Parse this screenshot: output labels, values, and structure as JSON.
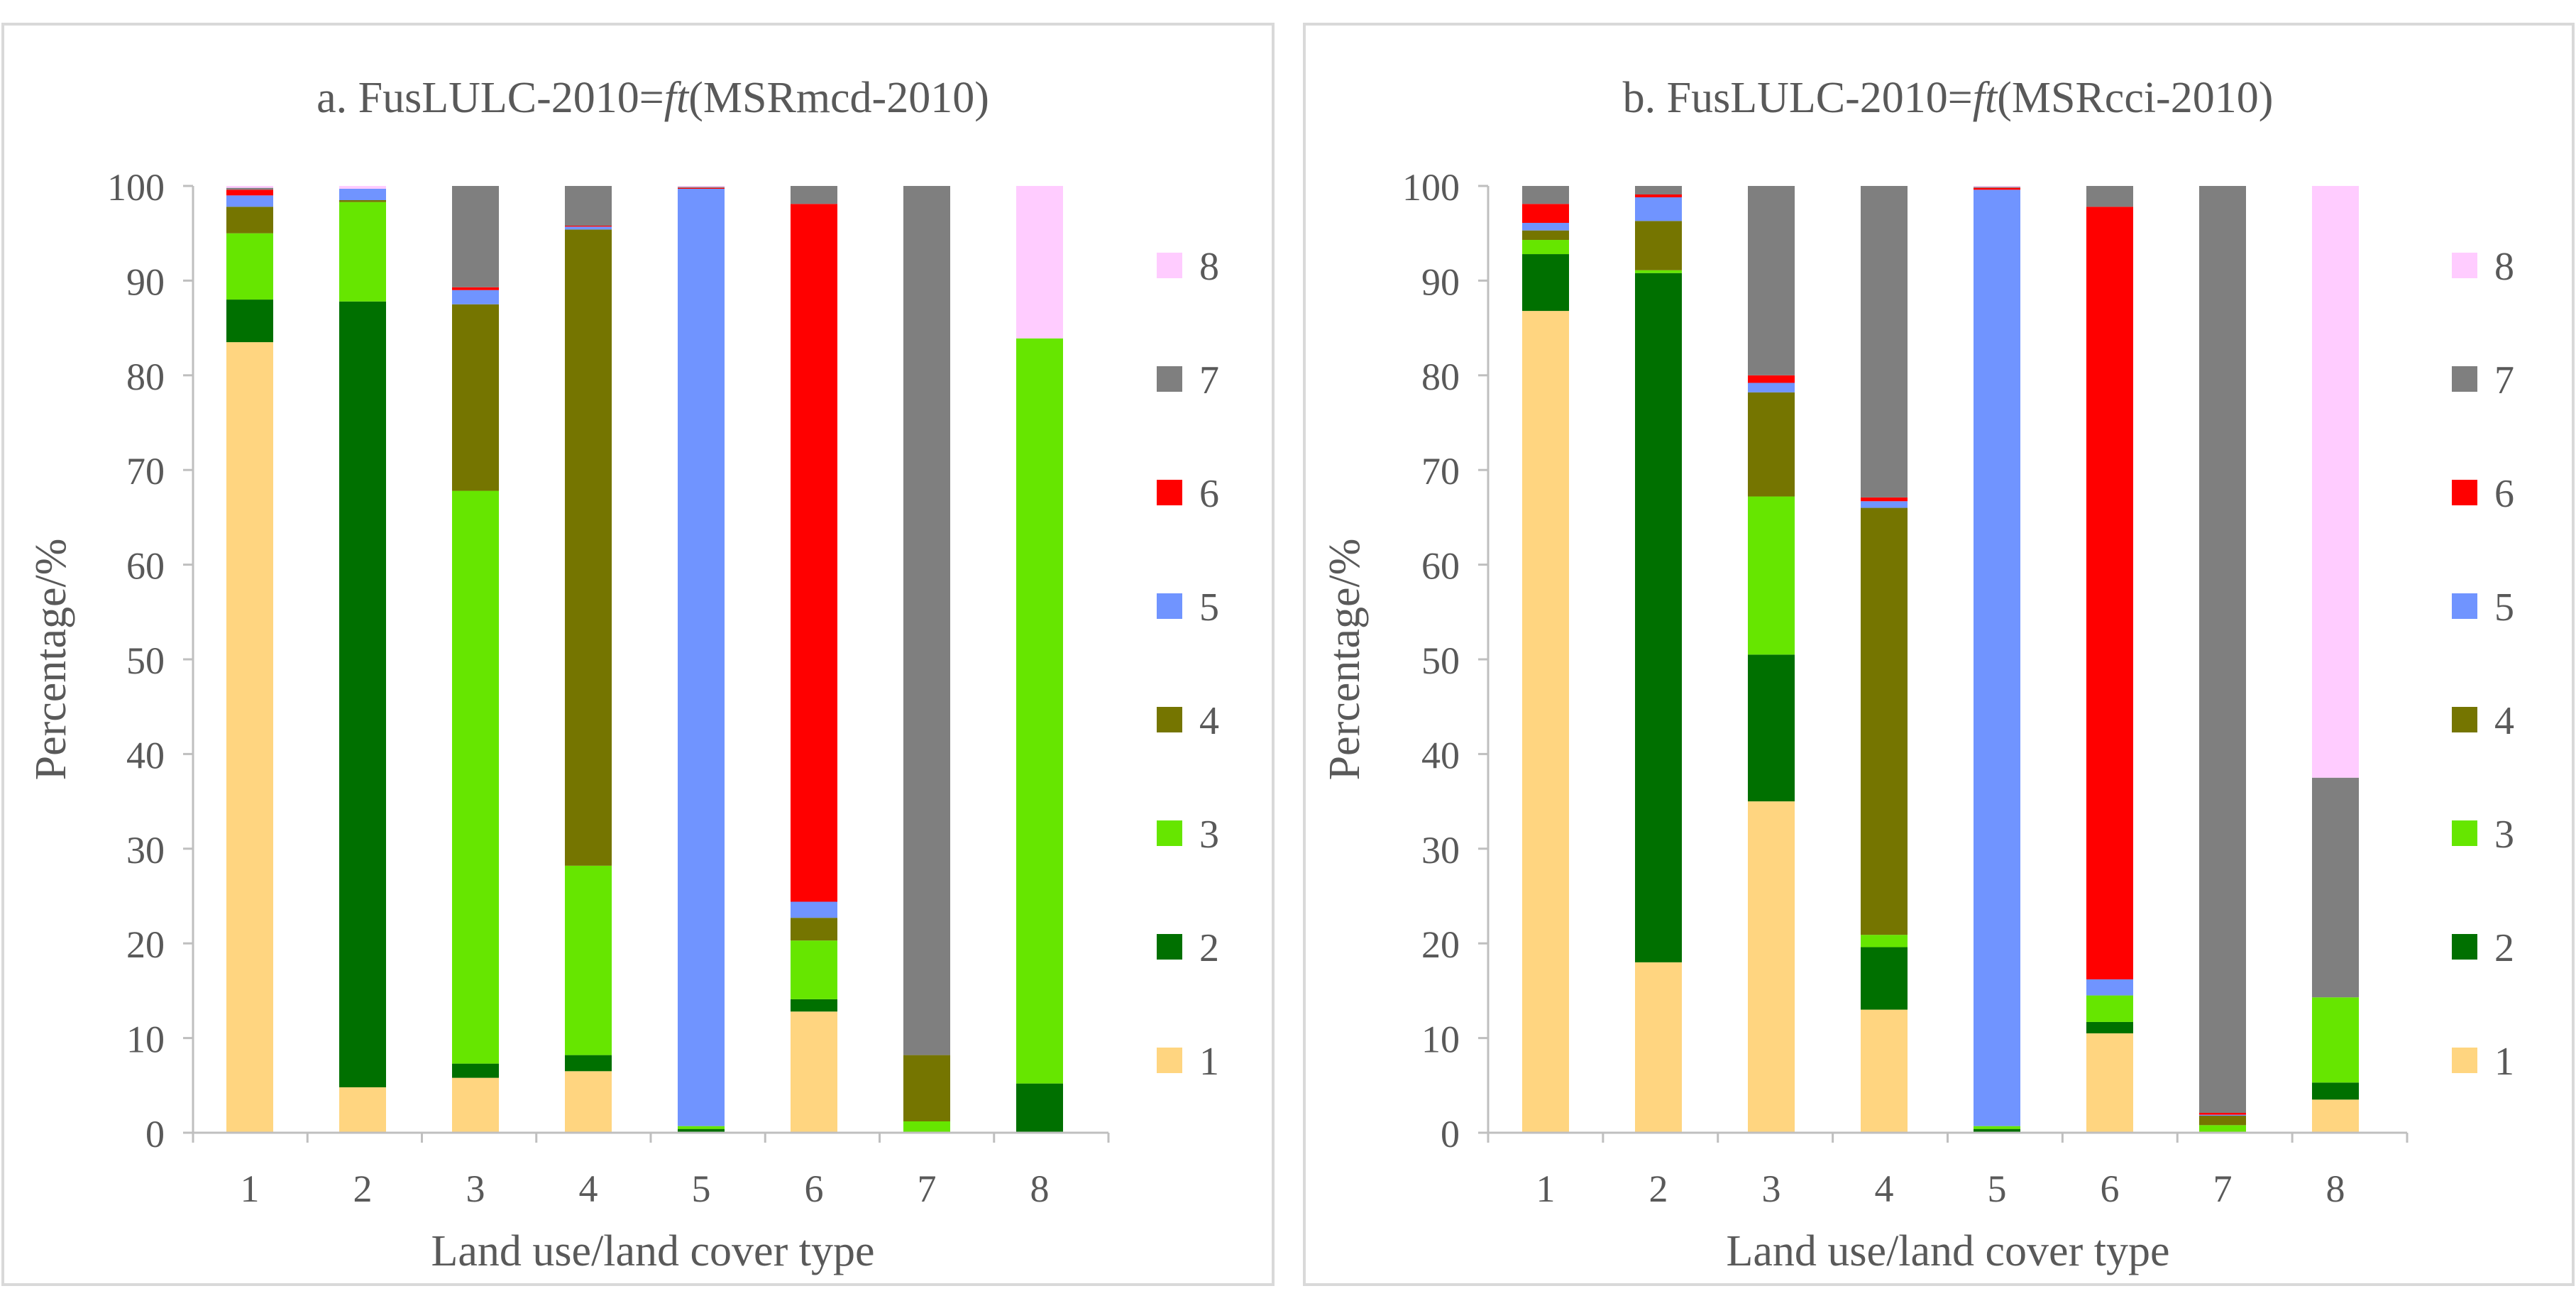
{
  "chart_data": [
    {
      "type": "bar",
      "stacked": true,
      "title_prefix": "a. FusLULC-2010=",
      "title_italic": "ft",
      "title_suffix": "(MSRmcd-2010)",
      "xlabel": "Land use/land cover type",
      "ylabel": "Percentage/%",
      "ylim": [
        0,
        100
      ],
      "yticks": [
        "0",
        "10",
        "20",
        "30",
        "40",
        "50",
        "60",
        "70",
        "80",
        "90",
        "100"
      ],
      "categories": [
        "1",
        "2",
        "3",
        "4",
        "5",
        "6",
        "7",
        "8"
      ],
      "series": [
        {
          "name": "1",
          "color": "#FFD580",
          "values": [
            83.5,
            4.8,
            5.8,
            6.5,
            0.0,
            12.8,
            0.0,
            0.0
          ]
        },
        {
          "name": "2",
          "color": "#007000",
          "values": [
            4.5,
            83.0,
            1.5,
            1.7,
            0.4,
            1.3,
            0.0,
            5.2
          ]
        },
        {
          "name": "3",
          "color": "#66E600",
          "values": [
            7.0,
            10.5,
            60.5,
            20.0,
            0.3,
            6.2,
            1.2,
            78.7
          ]
        },
        {
          "name": "4",
          "color": "#757500",
          "values": [
            2.8,
            0.2,
            19.7,
            67.2,
            0.0,
            2.4,
            7.0,
            0.0
          ]
        },
        {
          "name": "5",
          "color": "#7094FF",
          "values": [
            1.2,
            1.2,
            1.5,
            0.3,
            99.0,
            1.7,
            0.0,
            0.0
          ]
        },
        {
          "name": "6",
          "color": "#FF0000",
          "values": [
            0.6,
            0.0,
            0.3,
            0.1,
            0.1,
            73.7,
            0.0,
            0.0
          ]
        },
        {
          "name": "7",
          "color": "#7F7F7F",
          "values": [
            0.2,
            0.0,
            10.7,
            4.2,
            0.1,
            1.9,
            91.8,
            0.0
          ]
        },
        {
          "name": "8",
          "color": "#FFCCFF",
          "values": [
            0.2,
            0.3,
            0.0,
            0.0,
            0.1,
            0.0,
            0.0,
            16.1
          ]
        }
      ]
    },
    {
      "type": "bar",
      "stacked": true,
      "title_prefix": "b. FusLULC-2010=",
      "title_italic": "ft",
      "title_suffix": "(MSRcci-2010)",
      "xlabel": "Land use/land cover type",
      "ylabel": "Percentage/%",
      "ylim": [
        0,
        100
      ],
      "yticks": [
        "0",
        "10",
        "20",
        "30",
        "40",
        "50",
        "60",
        "70",
        "80",
        "90",
        "100"
      ],
      "categories": [
        "1",
        "2",
        "3",
        "4",
        "5",
        "6",
        "7",
        "8"
      ],
      "series": [
        {
          "name": "1",
          "color": "#FFD580",
          "values": [
            86.8,
            18.0,
            35.0,
            13.0,
            0.0,
            10.5,
            0.0,
            3.5
          ]
        },
        {
          "name": "2",
          "color": "#007000",
          "values": [
            6.0,
            72.8,
            15.5,
            6.6,
            0.4,
            1.2,
            0.0,
            1.8
          ]
        },
        {
          "name": "3",
          "color": "#66E600",
          "values": [
            1.5,
            0.3,
            16.7,
            1.3,
            0.3,
            2.8,
            0.8,
            9.0
          ]
        },
        {
          "name": "4",
          "color": "#757500",
          "values": [
            1.0,
            5.2,
            11.0,
            45.1,
            0.0,
            0.0,
            1.0,
            0.0
          ]
        },
        {
          "name": "5",
          "color": "#7094FF",
          "values": [
            0.8,
            2.5,
            1.0,
            0.7,
            98.9,
            1.7,
            0.1,
            0.0
          ]
        },
        {
          "name": "6",
          "color": "#FF0000",
          "values": [
            2.0,
            0.3,
            0.8,
            0.4,
            0.2,
            81.6,
            0.2,
            0.0
          ]
        },
        {
          "name": "7",
          "color": "#7F7F7F",
          "values": [
            1.9,
            0.9,
            20.0,
            32.9,
            0.1,
            2.2,
            97.9,
            23.2
          ]
        },
        {
          "name": "8",
          "color": "#FFCCFF",
          "values": [
            0.0,
            0.0,
            0.0,
            0.0,
            0.1,
            0.0,
            0.0,
            62.5
          ]
        }
      ]
    }
  ]
}
